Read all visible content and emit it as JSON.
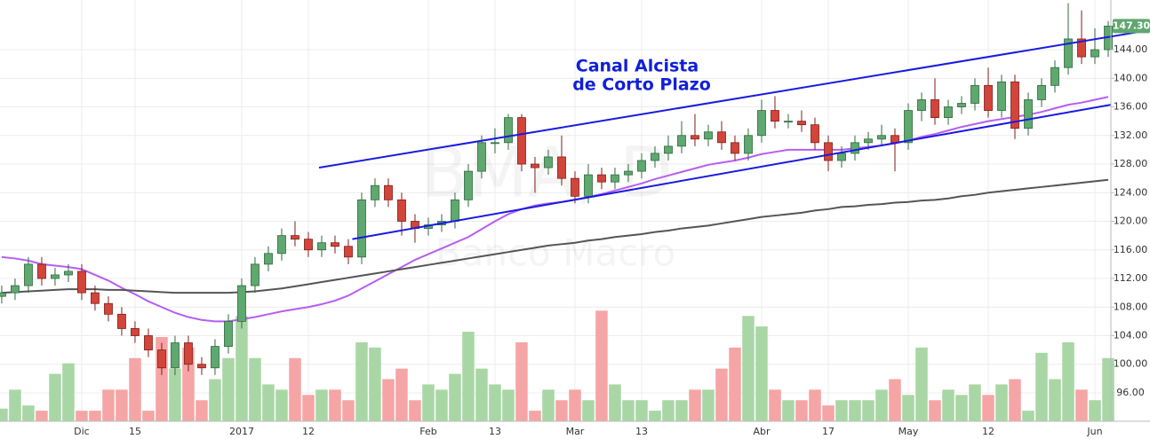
{
  "chart_data": {
    "type": "candlestick",
    "annotation": [
      "Canal Alcista",
      "de Corto Plazo"
    ],
    "watermark": [
      "BMA, D",
      "Banco Macro"
    ],
    "categories": [
      null,
      null,
      null,
      null,
      null,
      null,
      "Dic",
      null,
      null,
      null,
      "15",
      null,
      null,
      null,
      null,
      null,
      null,
      null,
      "2017",
      null,
      null,
      null,
      null,
      "12",
      null,
      null,
      null,
      null,
      null,
      null,
      null,
      null,
      "Feb",
      null,
      null,
      null,
      null,
      "13",
      null,
      null,
      null,
      null,
      null,
      "Mar",
      null,
      null,
      null,
      null,
      "13",
      null,
      null,
      null,
      null,
      null,
      null,
      null,
      null,
      "Abr",
      null,
      null,
      null,
      null,
      "17",
      null,
      null,
      null,
      null,
      null,
      "May",
      null,
      null,
      null,
      null,
      null,
      "12",
      null,
      null,
      null,
      null,
      null,
      null,
      null,
      "Jun",
      null
    ],
    "open": [
      109.5,
      110,
      111,
      114,
      112,
      112.5,
      113,
      110,
      108.5,
      107,
      105,
      104,
      102,
      99.5,
      103,
      100,
      99.5,
      102.5,
      106,
      111,
      114,
      115.5,
      118,
      117.5,
      116,
      117,
      116.5,
      115,
      123,
      125,
      123,
      120,
      119,
      119.5,
      120,
      123,
      127,
      131,
      131,
      134.5,
      128,
      127.5,
      129,
      126,
      123.5,
      126.5,
      125.5,
      126.5,
      127,
      128.5,
      129.5,
      130.5,
      132,
      131.5,
      132.5,
      131,
      129.5,
      132,
      135.5,
      134,
      134,
      133.5,
      131,
      128.5,
      129.5,
      131,
      131.5,
      132,
      131,
      135.5,
      137,
      134.5,
      136,
      136.5,
      139,
      135.5,
      139.5,
      133,
      137,
      139,
      141.5,
      145.5,
      143,
      144
    ],
    "high": [
      111,
      112,
      115,
      115,
      113.5,
      114,
      114,
      111,
      109.5,
      108,
      106,
      105,
      103,
      104,
      104,
      101,
      103.5,
      107,
      112,
      115,
      116.5,
      119,
      120,
      118.5,
      118,
      118,
      117.5,
      124,
      126,
      126,
      124,
      121,
      120.5,
      121,
      124,
      128,
      132,
      133,
      135,
      135,
      129,
      130,
      132,
      127,
      128,
      127.5,
      127.5,
      128,
      129.5,
      130.5,
      132,
      134,
      135,
      133.5,
      134,
      132,
      133,
      137,
      137.5,
      135,
      135.5,
      134.5,
      132,
      130.5,
      132,
      132.5,
      133.5,
      133,
      136.5,
      138,
      140,
      137,
      137.5,
      140,
      141.5,
      140.5,
      140.5,
      138,
      140,
      142.5,
      150.5,
      149.5,
      147,
      148
    ],
    "low": [
      108.5,
      109,
      110,
      111,
      111,
      111.5,
      109,
      107.5,
      106,
      104,
      103,
      101,
      98.5,
      98.5,
      99,
      98.5,
      98.5,
      101.5,
      105,
      110,
      113,
      114.5,
      116.5,
      115,
      115,
      115.5,
      114,
      114,
      122,
      122,
      118,
      117,
      118,
      118.5,
      119,
      122,
      126,
      129.5,
      130,
      127,
      124,
      126.5,
      125,
      122.5,
      122.5,
      124.5,
      124.5,
      125.5,
      126,
      127.5,
      128.5,
      129.5,
      130.5,
      130.5,
      130,
      128.5,
      128.5,
      131,
      133,
      133,
      132.5,
      130,
      127,
      127.5,
      128.5,
      130,
      130.5,
      127,
      130,
      134,
      133.5,
      133.5,
      135,
      135.5,
      134.5,
      134.5,
      131.5,
      132,
      136,
      138,
      140.5,
      142,
      142,
      143
    ],
    "close": [
      110,
      111,
      114,
      112,
      112.5,
      113,
      110,
      108.5,
      107,
      105,
      104,
      102,
      99.5,
      103,
      100,
      99.5,
      102.5,
      106,
      111,
      114,
      115.5,
      118,
      117.5,
      116,
      117,
      116.5,
      115,
      123,
      125,
      123,
      120,
      119,
      119.5,
      120,
      123,
      127,
      131,
      131,
      134.5,
      128,
      127.5,
      129,
      126,
      123.5,
      126.5,
      125.5,
      126.5,
      127,
      128.5,
      129.5,
      130.5,
      132,
      131.5,
      132.5,
      131,
      129.5,
      132,
      135.5,
      134,
      134,
      133.5,
      131,
      128.5,
      129.5,
      131,
      131.5,
      132,
      131,
      135.5,
      137,
      134.5,
      136,
      136.5,
      139,
      135.5,
      139.5,
      133,
      137,
      139,
      141.5,
      145.5,
      143,
      144,
      147.3
    ],
    "volume": [
      12,
      30,
      15,
      10,
      45,
      55,
      10,
      10,
      30,
      30,
      60,
      10,
      80,
      50,
      70,
      20,
      40,
      60,
      100,
      60,
      35,
      30,
      60,
      25,
      30,
      30,
      20,
      75,
      70,
      40,
      50,
      20,
      35,
      30,
      45,
      85,
      50,
      35,
      30,
      75,
      10,
      30,
      20,
      30,
      20,
      105,
      35,
      20,
      20,
      10,
      20,
      20,
      30,
      30,
      50,
      70,
      100,
      90,
      30,
      20,
      20,
      30,
      15,
      20,
      20,
      20,
      30,
      40,
      25,
      70,
      20,
      30,
      25,
      35,
      25,
      35,
      40,
      10,
      65,
      40,
      75,
      30,
      20,
      60
    ],
    "up_color": "#5fa86f",
    "down_color": "#d2453b",
    "volume_up_color": "#a9d6a5",
    "volume_down_color": "#f5a5a5",
    "moving_averages": [
      {
        "color": "#b65ef0",
        "values": [
          115,
          114.8,
          114.5,
          114,
          113.8,
          113.6,
          113.3,
          112.5,
          111.7,
          110.7,
          109.8,
          108.8,
          108,
          107.2,
          106.6,
          106.2,
          106,
          106,
          106.3,
          106.6,
          107,
          107.4,
          107.7,
          108,
          108.4,
          108.9,
          109.6,
          110.6,
          111.6,
          112.6,
          113.6,
          114.6,
          115.4,
          116.2,
          117,
          117.8,
          118.9,
          120,
          121,
          121.7,
          122.2,
          122.5,
          122.7,
          123,
          123.4,
          123.8,
          124.3,
          124.8,
          125.3,
          125.9,
          126.4,
          126.9,
          127.4,
          127.9,
          128.2,
          128.5,
          128.9,
          129.4,
          129.7,
          130,
          130,
          130,
          130,
          130,
          130.2,
          130.4,
          130.6,
          130.9,
          131.3,
          131.8,
          132.2,
          132.7,
          133.2,
          133.6,
          134,
          134.3,
          134.6,
          134.9,
          135.3,
          135.8,
          136.3,
          136.6,
          137,
          137.4
        ]
      },
      {
        "color": "#555555",
        "values": [
          110,
          110.1,
          110.2,
          110.3,
          110.4,
          110.5,
          110.5,
          110.5,
          110.4,
          110.4,
          110.3,
          110.2,
          110.1,
          110,
          110,
          110,
          110,
          110,
          110.1,
          110.2,
          110.4,
          110.6,
          110.9,
          111.2,
          111.5,
          111.8,
          112.1,
          112.4,
          112.7,
          113,
          113.3,
          113.6,
          113.9,
          114.2,
          114.5,
          114.8,
          115.1,
          115.4,
          115.7,
          116,
          116.3,
          116.6,
          116.8,
          117,
          117.3,
          117.5,
          117.8,
          118,
          118.2,
          118.5,
          118.7,
          119,
          119.2,
          119.4,
          119.7,
          120,
          120.3,
          120.6,
          120.8,
          121,
          121.2,
          121.5,
          121.7,
          122,
          122.1,
          122.3,
          122.4,
          122.6,
          122.7,
          122.9,
          123,
          123.2,
          123.5,
          123.7,
          124,
          124.2,
          124.4,
          124.6,
          124.8,
          125,
          125.2,
          125.4,
          125.6,
          125.8
        ]
      }
    ],
    "trendlines": [
      {
        "color": "#1a1ae0",
        "x": [
          23.8,
          86
        ],
        "values": [
          127.5,
          146.7
        ]
      },
      {
        "color": "#1a1ae0",
        "x": [
          26.3,
          83.2
        ],
        "values": [
          117.5,
          136.3
        ]
      }
    ],
    "last_price": {
      "value": 147.3,
      "label": "147.30"
    },
    "xlim": [
      -0.13,
      83.2
    ],
    "ylim": [
      92.03,
      150.95
    ],
    "yticks": [
      {
        "value": 96,
        "label": "96.00"
      },
      {
        "value": 100,
        "label": "100.00"
      },
      {
        "value": 104,
        "label": "104.00"
      },
      {
        "value": 108,
        "label": "108.00"
      },
      {
        "value": 112,
        "label": "112.00"
      },
      {
        "value": 116,
        "label": "116.00"
      },
      {
        "value": 120,
        "label": "120.00"
      },
      {
        "value": 124,
        "label": "124.00"
      },
      {
        "value": 128,
        "label": "128.00"
      },
      {
        "value": 132,
        "label": "132.00"
      },
      {
        "value": 136,
        "label": "136.00"
      },
      {
        "value": 140,
        "label": "140.00"
      },
      {
        "value": 144,
        "label": "144.00"
      }
    ],
    "y2lim": [
      0,
      400
    ],
    "grid": true
  }
}
